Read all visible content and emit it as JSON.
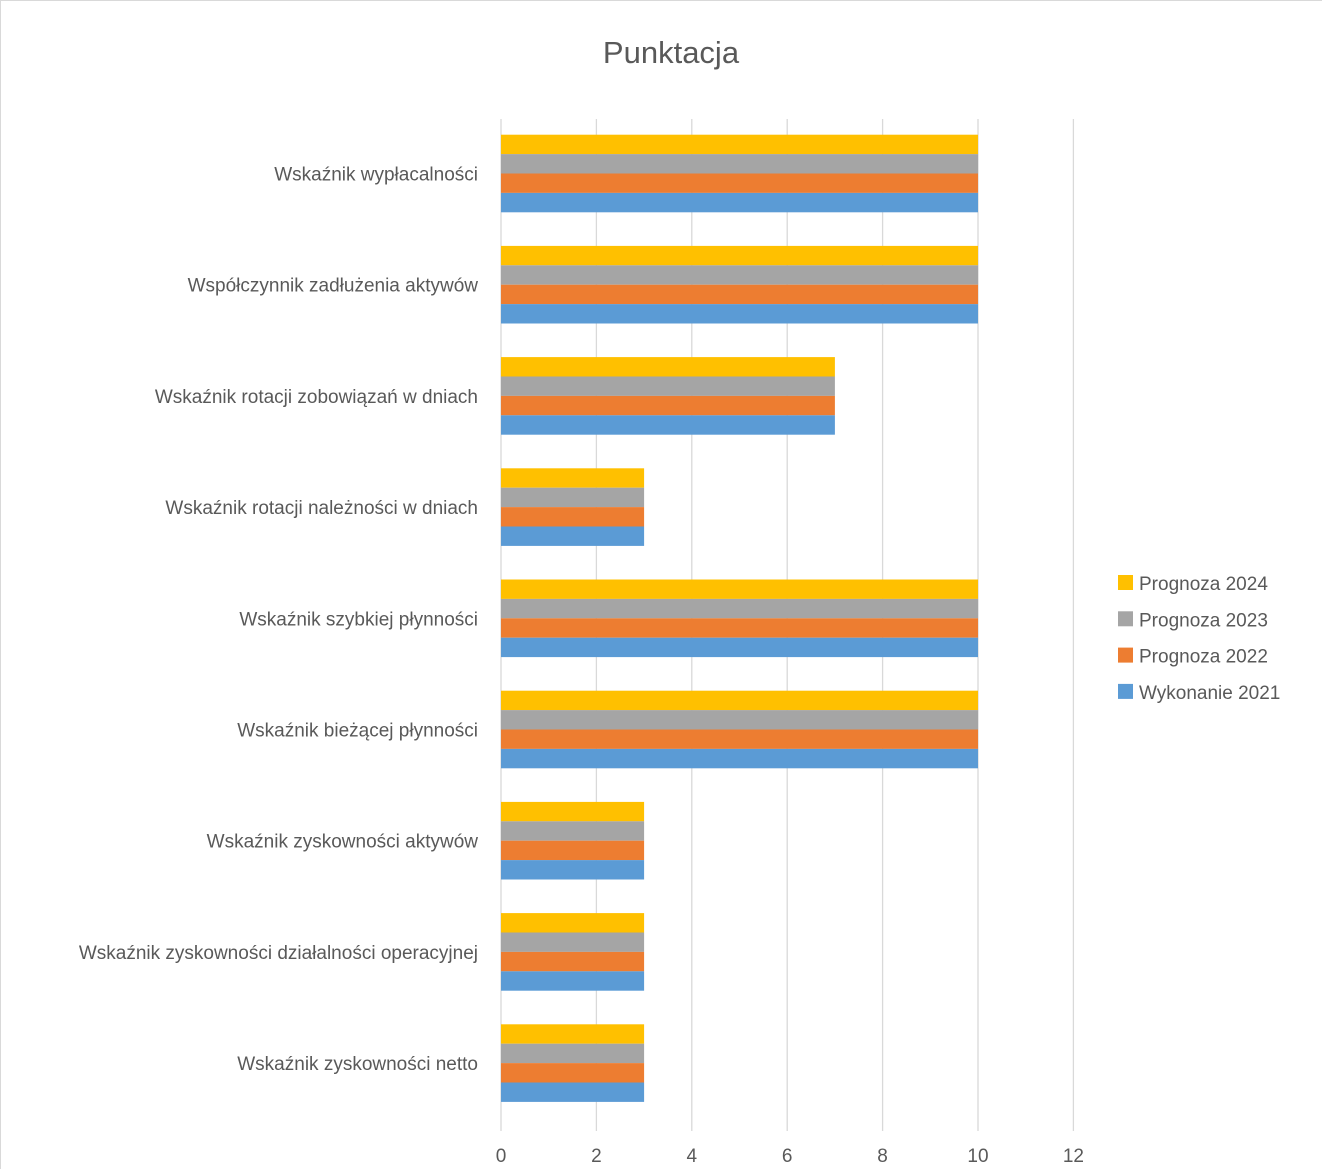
{
  "chart_data": {
    "type": "bar",
    "orientation": "horizontal",
    "title": "Punktacja",
    "xlabel": "",
    "ylabel": "",
    "xlim": [
      0,
      12
    ],
    "x_ticks": [
      "0",
      "2",
      "4",
      "6",
      "8",
      "10",
      "12"
    ],
    "grid": true,
    "legend_position": "right",
    "categories": [
      "Wskaźnik wypłacalności",
      "Współczynnik zadłużenia aktywów",
      "Wskaźnik rotacji zobowiązań w dniach",
      "Wskaźnik rotacji należności w dniach",
      "Wskaźnik szybkiej płynności",
      "Wskaźnik bieżącej płynności",
      "Wskaźnik zyskowności aktywów",
      "Wskaźnik zyskowności działalności operacyjnej",
      "Wskaźnik zyskowności netto"
    ],
    "series": [
      {
        "name": "Prognoza 2024",
        "color": "#ffc000",
        "values": [
          10,
          10,
          7,
          3,
          10,
          10,
          3,
          3,
          3
        ]
      },
      {
        "name": "Prognoza 2023",
        "color": "#a5a5a5",
        "values": [
          10,
          10,
          7,
          3,
          10,
          10,
          3,
          3,
          3
        ]
      },
      {
        "name": "Prognoza 2022",
        "color": "#ed7d31",
        "values": [
          10,
          10,
          7,
          3,
          10,
          10,
          3,
          3,
          3
        ]
      },
      {
        "name": "Wykonanie 2021",
        "color": "#5b9bd5",
        "values": [
          10,
          10,
          7,
          3,
          10,
          10,
          3,
          3,
          3
        ]
      }
    ]
  }
}
